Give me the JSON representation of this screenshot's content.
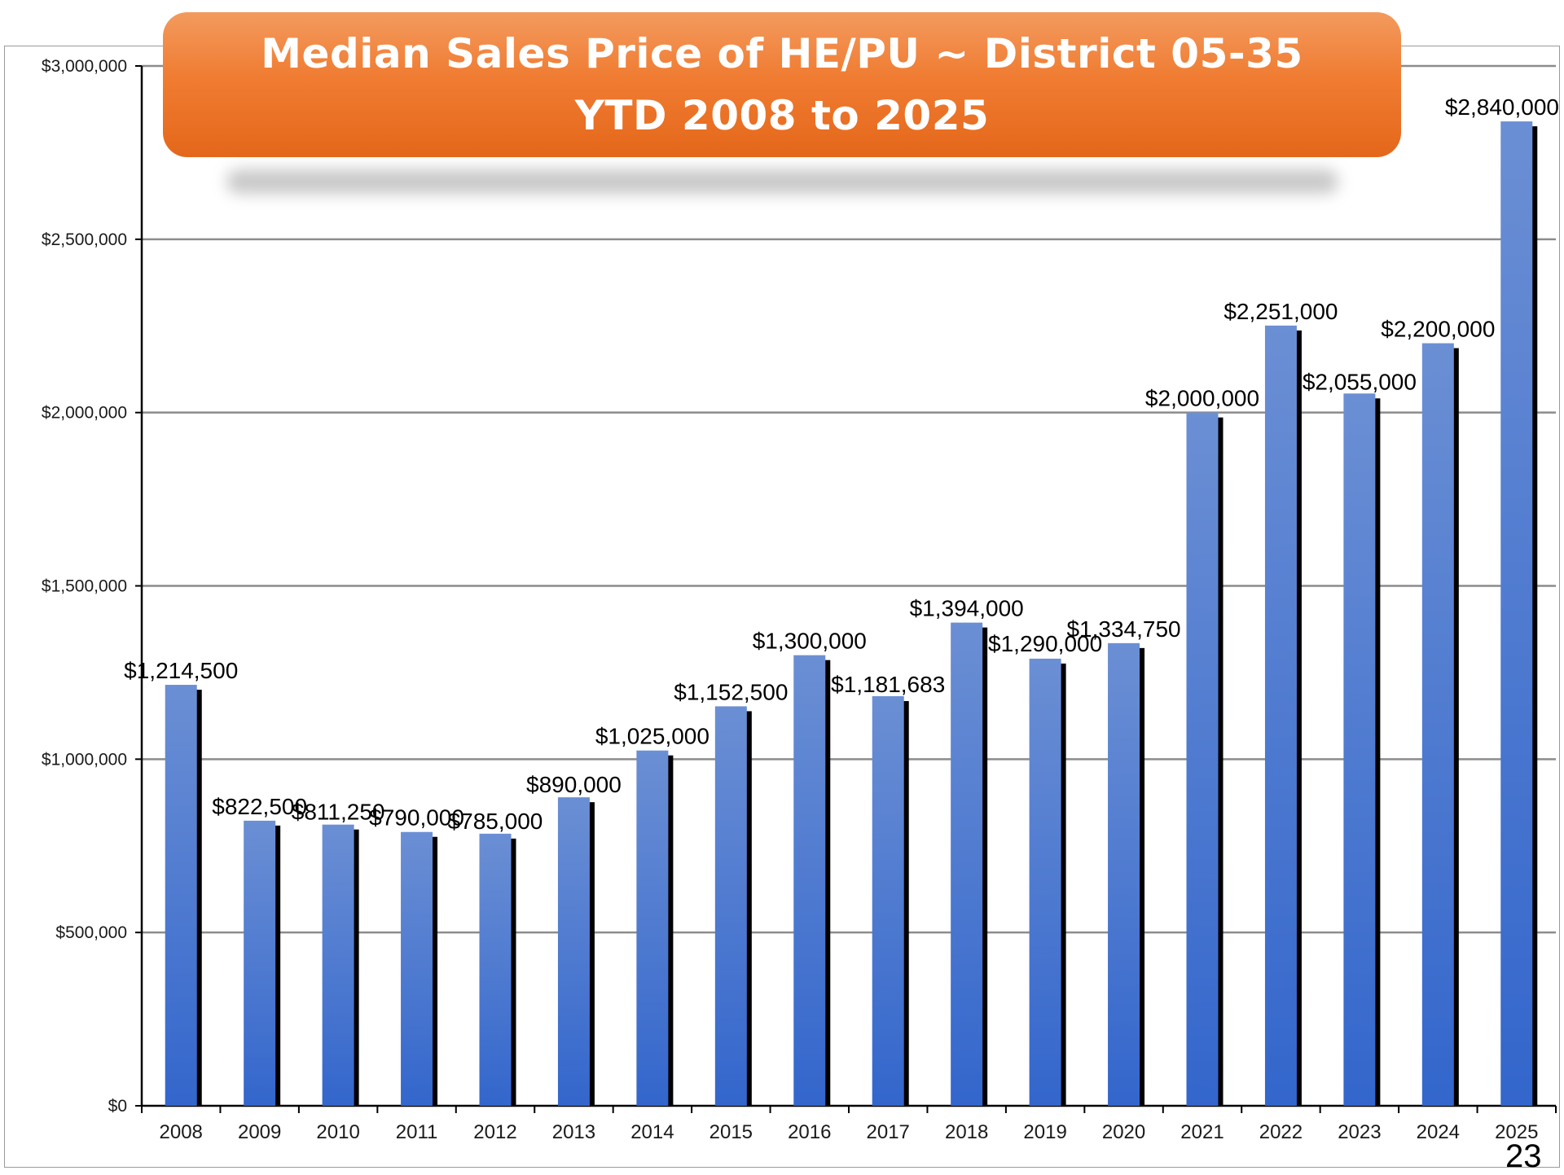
{
  "title": {
    "line1": "Median Sales Price of HE/PU ~ District 05-35",
    "line2": "YTD 2008 to 2025"
  },
  "page_number": "23",
  "chart_data": {
    "type": "bar",
    "title": "Median Sales Price of HE/PU ~ District 05-35 YTD 2008 to 2025",
    "xlabel": "",
    "ylabel": "",
    "categories": [
      "2008",
      "2009",
      "2010",
      "2011",
      "2012",
      "2013",
      "2014",
      "2015",
      "2016",
      "2017",
      "2018",
      "2019",
      "2020",
      "2021",
      "2022",
      "2023",
      "2024",
      "2025"
    ],
    "values": [
      1214500,
      822500,
      811250,
      790000,
      785000,
      890000,
      1025000,
      1152500,
      1300000,
      1181683,
      1394000,
      1290000,
      1334750,
      2000000,
      2251000,
      2055000,
      2200000,
      2840000
    ],
    "data_labels": [
      "$1,214,500",
      "$822,500",
      "$811,250",
      "$790,000",
      "$785,000",
      "$890,000",
      "$1,025,000",
      "$1,152,500",
      "$1,300,000",
      "$1,181,683",
      "$1,394,000",
      "$1,290,000",
      "$1,334,750",
      "$2,000,000",
      "$2,251,000",
      "$2,055,000",
      "$2,200,000",
      "$2,840,000"
    ],
    "ylim": [
      0,
      3000000
    ],
    "yticks": [
      0,
      500000,
      1000000,
      1500000,
      2000000,
      2500000,
      3000000
    ],
    "ytick_labels": [
      "$0",
      "$500,000",
      "$1,000,000",
      "$1,500,000",
      "$2,000,000",
      "$2,500,000",
      "$3,000,000"
    ],
    "grid": true,
    "legend": "none",
    "colors": {
      "bar_light": "#6b8fd4",
      "bar_dark": "#3366cc",
      "bar_shadow": "#000000",
      "grid": "#8c8c8c",
      "title_bg": "#f07c32"
    }
  }
}
